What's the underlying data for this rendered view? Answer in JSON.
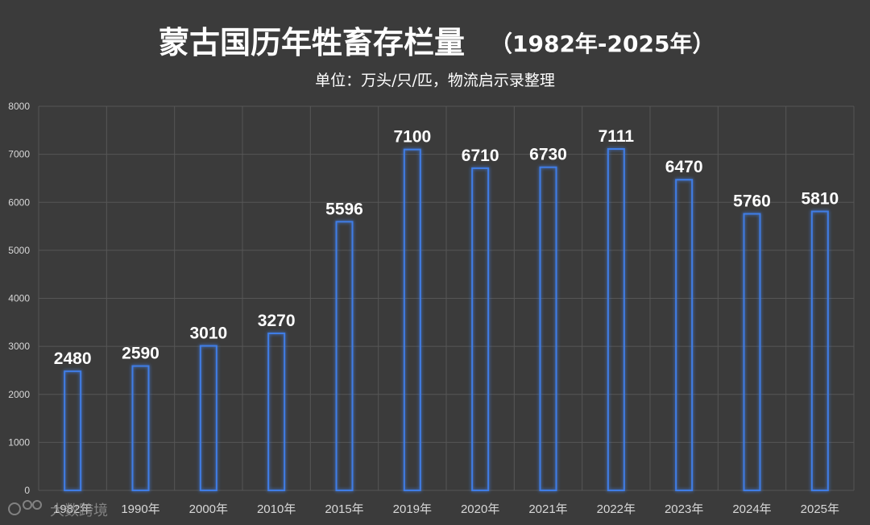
{
  "title_main": "蒙古国历年牲畜存栏量",
  "title_range": "（1982年-2025年）",
  "subtitle": "单位：万头/只/匹，物流启示录整理",
  "watermark": "大数跨境",
  "colors": {
    "background": "#3b3b3b",
    "bar_stroke": "#3f7de6",
    "bar_glow": "#5b9cff",
    "grid": "#565656"
  },
  "chart_data": {
    "type": "bar",
    "categories": [
      "1982年",
      "1990年",
      "2000年",
      "2010年",
      "2015年",
      "2019年",
      "2020年",
      "2021年",
      "2022年",
      "2023年",
      "2024年",
      "2025年"
    ],
    "values": [
      2480,
      2590,
      3010,
      3270,
      5596,
      7100,
      6710,
      6730,
      7111,
      6470,
      5760,
      5810
    ],
    "data_labels": [
      "2480",
      "2590",
      "3010",
      "3270",
      "5596",
      "7100",
      "6710",
      "6730",
      "7111",
      "6470",
      "5760",
      "5810"
    ],
    "ylim": [
      0,
      8000
    ],
    "y_ticks": [
      "0",
      "1000",
      "2000",
      "3000",
      "4000",
      "5000",
      "6000",
      "7000",
      "8000"
    ],
    "grid": true,
    "bar_style": "outline"
  }
}
